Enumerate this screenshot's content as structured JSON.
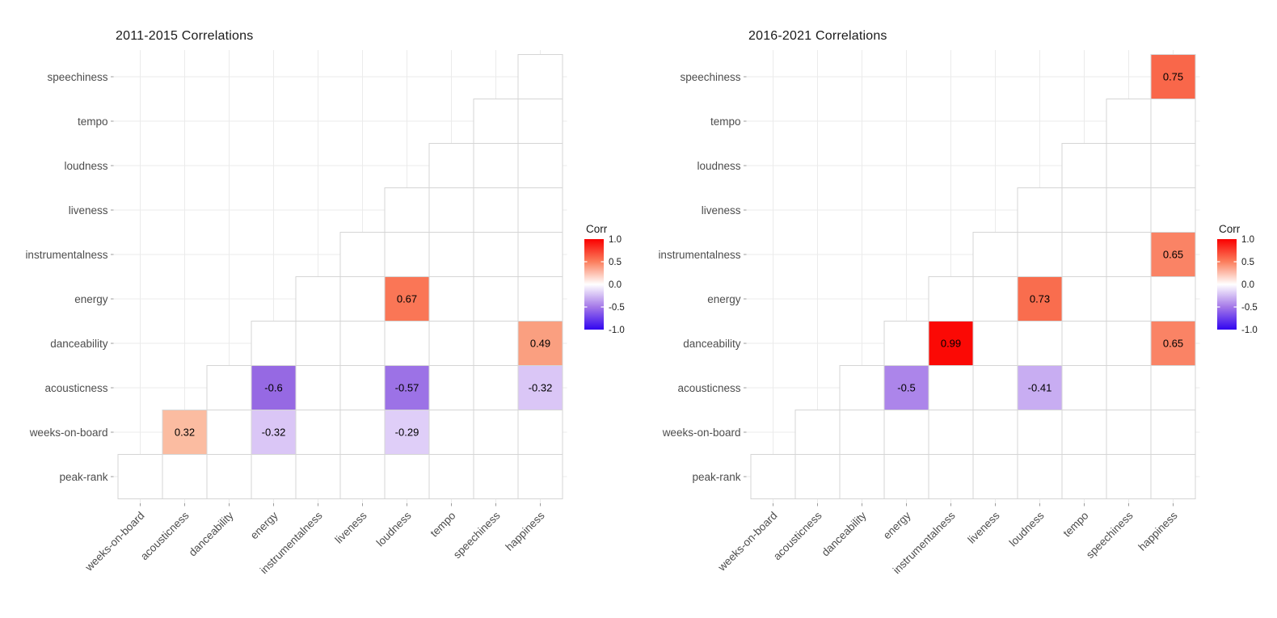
{
  "figure_background": "#FFFFFF",
  "chart_data": [
    {
      "type": "heatmap",
      "title": "2011-2015 Correlations",
      "shape": "upper-triangle-staircase",
      "x_labels": [
        "weeks-on-board",
        "acousticness",
        "danceability",
        "energy",
        "instrumentalness",
        "liveness",
        "loudness",
        "tempo",
        "speechiness",
        "happiness"
      ],
      "y_labels": [
        "speechiness",
        "tempo",
        "loudness",
        "liveness",
        "instrumentalness",
        "energy",
        "danceability",
        "acousticness",
        "weeks-on-board",
        "peak-rank"
      ],
      "value_range": [
        -1,
        1
      ],
      "cells": [
        {
          "y": "weeks-on-board",
          "x": "acousticness",
          "value": 0.32,
          "label": "0.32",
          "color": "#FBBCA1"
        },
        {
          "y": "weeks-on-board",
          "x": "energy",
          "value": -0.32,
          "label": "-0.32",
          "color": "#DAC6F6"
        },
        {
          "y": "weeks-on-board",
          "x": "loudness",
          "value": -0.29,
          "label": "-0.29",
          "color": "#DFCEF8"
        },
        {
          "y": "acousticness",
          "x": "energy",
          "value": -0.6,
          "label": "-0.6",
          "color": "#9669E3"
        },
        {
          "y": "acousticness",
          "x": "loudness",
          "value": -0.57,
          "label": "-0.57",
          "color": "#9C72E6"
        },
        {
          "y": "acousticness",
          "x": "happiness",
          "value": -0.32,
          "label": "-0.32",
          "color": "#DAC6F6"
        },
        {
          "y": "energy",
          "x": "loudness",
          "value": 0.67,
          "label": "0.67",
          "color": "#FA7656"
        },
        {
          "y": "danceability",
          "x": "happiness",
          "value": 0.49,
          "label": "0.49",
          "color": "#FA9F80"
        }
      ],
      "legend": {
        "title": "Corr",
        "tick_labels": [
          "1.0",
          "0.5",
          "0.0",
          "-0.5",
          "-1.0"
        ],
        "gradient_stops": [
          "#FA0000",
          "#FB7E5D",
          "#FFFFFF",
          "#A478E8",
          "#3205F0"
        ]
      }
    },
    {
      "type": "heatmap",
      "title": "2016-2021 Correlations",
      "shape": "upper-triangle-staircase",
      "x_labels": [
        "weeks-on-board",
        "acousticness",
        "danceability",
        "energy",
        "instrumentalness",
        "liveness",
        "loudness",
        "tempo",
        "speechiness",
        "happiness"
      ],
      "y_labels": [
        "speechiness",
        "tempo",
        "loudness",
        "liveness",
        "instrumentalness",
        "energy",
        "danceability",
        "acousticness",
        "weeks-on-board",
        "peak-rank"
      ],
      "value_range": [
        -1,
        1
      ],
      "cells": [
        {
          "y": "speechiness",
          "x": "happiness",
          "value": 0.75,
          "label": "0.75",
          "color": "#F9674A"
        },
        {
          "y": "instrumentalness",
          "x": "happiness",
          "value": 0.65,
          "label": "0.65",
          "color": "#FA8365"
        },
        {
          "y": "energy",
          "x": "loudness",
          "value": 0.73,
          "label": "0.73",
          "color": "#F96D4E"
        },
        {
          "y": "danceability",
          "x": "instrumentalness",
          "value": 0.99,
          "label": "0.99",
          "color": "#FB0905"
        },
        {
          "y": "danceability",
          "x": "happiness",
          "value": 0.65,
          "label": "0.65",
          "color": "#FA8365"
        },
        {
          "y": "acousticness",
          "x": "energy",
          "value": -0.5,
          "label": "-0.5",
          "color": "#AC85EA"
        },
        {
          "y": "acousticness",
          "x": "loudness",
          "value": -0.41,
          "label": "-0.41",
          "color": "#C8ADF2"
        }
      ],
      "legend": {
        "title": "Corr",
        "tick_labels": [
          "1.0",
          "0.5",
          "0.0",
          "-0.5",
          "-1.0"
        ],
        "gradient_stops": [
          "#FA0000",
          "#FB7E5D",
          "#FFFFFF",
          "#A478E8",
          "#3205F0"
        ]
      }
    }
  ]
}
